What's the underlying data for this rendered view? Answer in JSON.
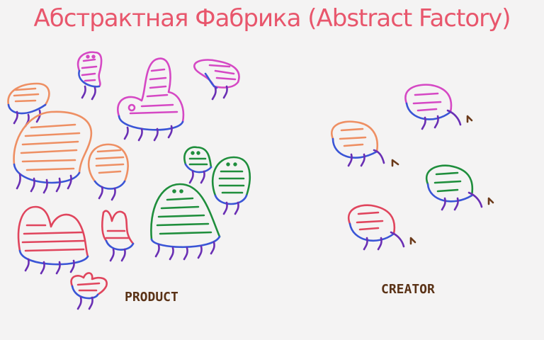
{
  "title": "Абстрактная Фабрика (Abstract Factory)",
  "labels": {
    "product": "PRODUCT",
    "creator": "CREATOR"
  },
  "colors": {
    "title": "#e8566c",
    "label": "#5a3216",
    "orange": "#ee8f63",
    "magenta": "#d548c4",
    "red": "#e0455d",
    "green": "#1f8e3c",
    "blue": "#3a55d6",
    "purple": "#6a2fb4",
    "arrow": "#6b3a1a"
  }
}
